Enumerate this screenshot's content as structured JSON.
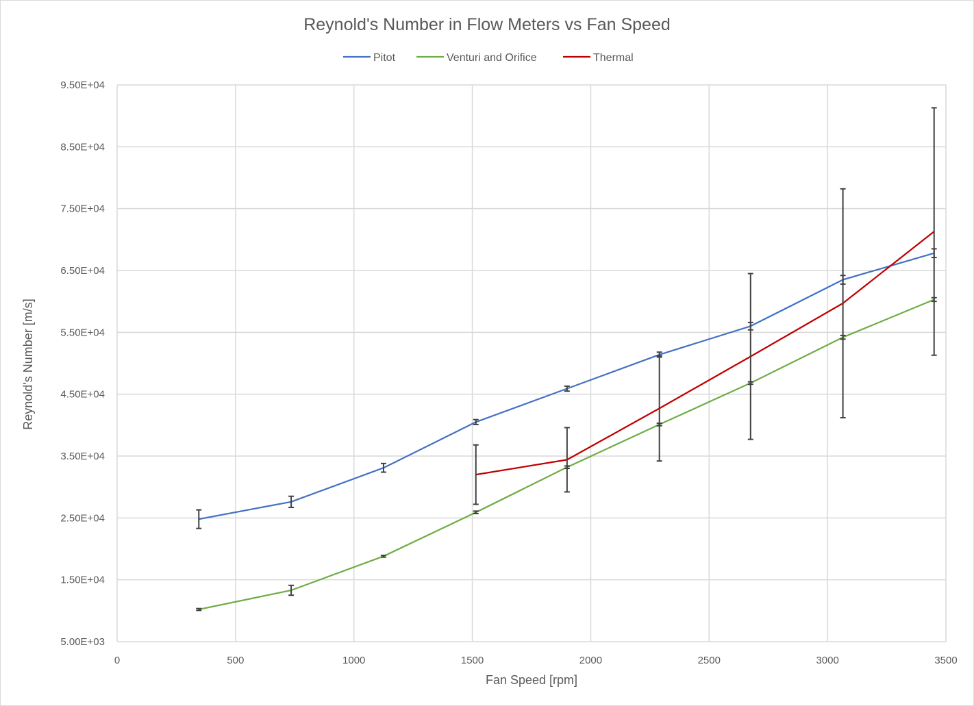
{
  "chart_data": {
    "type": "line",
    "title": "Reynold's Number in Flow Meters vs Fan Speed",
    "xlabel": "Fan Speed [rpm]",
    "ylabel": "Reynold's Number [m/s]",
    "xlim": [
      0,
      3500
    ],
    "ylim": [
      5000,
      95000
    ],
    "x_ticks": [
      0,
      500,
      1000,
      1500,
      2000,
      2500,
      3000,
      3500
    ],
    "x_tick_labels": [
      "0",
      "500",
      "1000",
      "1500",
      "2000",
      "2500",
      "3000",
      "3500"
    ],
    "y_ticks": [
      5000,
      15000,
      25000,
      35000,
      45000,
      55000,
      65000,
      75000,
      85000,
      95000
    ],
    "y_tick_labels": [
      "5.00E+03",
      "1.50E+04",
      "2.50E+04",
      "3.50E+04",
      "4.50E+04",
      "5.50E+04",
      "6.50E+04",
      "7.50E+04",
      "8.50E+04",
      "9.50E+04"
    ],
    "grid": true,
    "legend_position": "top",
    "series": [
      {
        "name": "Pitot",
        "color": "#4472c4",
        "x": [
          345,
          735,
          1125,
          1515,
          1900,
          2290,
          2675,
          3065,
          3450
        ],
        "y": [
          24800,
          27600,
          33100,
          40500,
          45900,
          51400,
          56000,
          63500,
          67800
        ],
        "err": [
          1500,
          900,
          700,
          400,
          400,
          400,
          600,
          700,
          700
        ]
      },
      {
        "name": "Venturi and Orifice",
        "color": "#70ad47",
        "x": [
          345,
          735,
          1125,
          1515,
          1900,
          2290,
          2675,
          3065,
          3450
        ],
        "y": [
          10200,
          13300,
          18800,
          25900,
          33200,
          40100,
          46800,
          54200,
          60300
        ],
        "err": [
          150,
          800,
          150,
          200,
          200,
          200,
          200,
          300,
          300
        ]
      },
      {
        "name": "Thermal",
        "color": "#c00000",
        "x": [
          1515,
          1900,
          2290,
          2675,
          3065,
          3450
        ],
        "y": [
          32000,
          34400,
          42700,
          51100,
          59700,
          71300
        ],
        "err": [
          4800,
          5200,
          8500,
          13400,
          18500,
          20000
        ]
      }
    ]
  }
}
